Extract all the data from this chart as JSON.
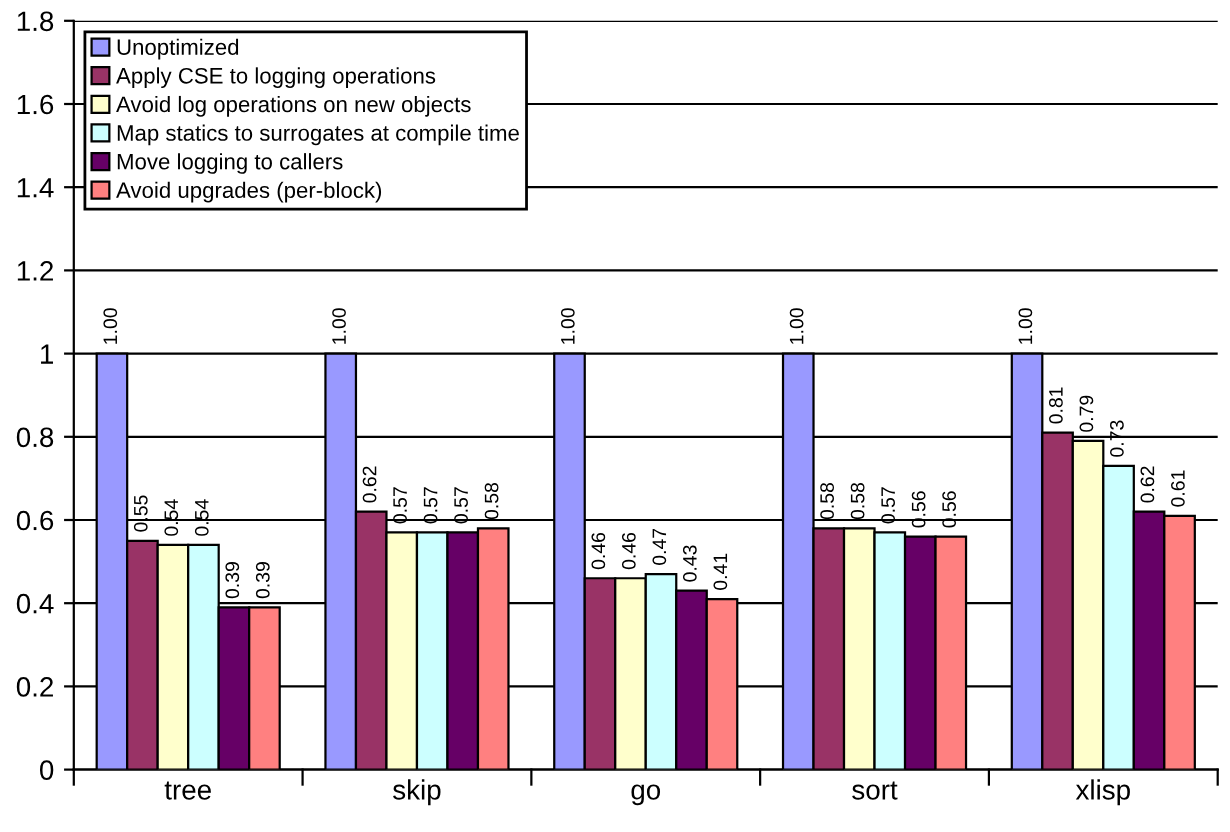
{
  "chart_data": {
    "type": "bar",
    "categories": [
      "tree",
      "skip",
      "go",
      "sort",
      "xlisp"
    ],
    "series": [
      {
        "name": "Unoptimized",
        "color": "#9999ff",
        "values": [
          1.0,
          1.0,
          1.0,
          1.0,
          1.0
        ],
        "value_labels": [
          "1.00",
          "1.00",
          "1.00",
          "1.00",
          "1.00"
        ]
      },
      {
        "name": "Apply CSE to logging operations",
        "color": "#993366",
        "values": [
          0.55,
          0.62,
          0.46,
          0.58,
          0.81
        ],
        "value_labels": [
          "0.55",
          "0.62",
          "0.46",
          "0.58",
          "0.81"
        ]
      },
      {
        "name": "Avoid log operations on new objects",
        "color": "#ffffcc",
        "values": [
          0.54,
          0.57,
          0.46,
          0.58,
          0.79
        ],
        "value_labels": [
          "0.54",
          "0.57",
          "0.46",
          "0.58",
          "0.79"
        ]
      },
      {
        "name": "Map statics to surrogates at compile time",
        "color": "#ccffff",
        "values": [
          0.54,
          0.57,
          0.47,
          0.57,
          0.73
        ],
        "value_labels": [
          "0.54",
          "0.57",
          "0.47",
          "0.57",
          "0.73"
        ]
      },
      {
        "name": "Move logging to callers",
        "color": "#660066",
        "values": [
          0.39,
          0.57,
          0.43,
          0.56,
          0.62
        ],
        "value_labels": [
          "0.39",
          "0.57",
          "0.43",
          "0.56",
          "0.62"
        ]
      },
      {
        "name": "Avoid upgrades (per-block)",
        "color": "#ff8080",
        "values": [
          0.39,
          0.58,
          0.41,
          0.56,
          0.61
        ],
        "value_labels": [
          "0.39",
          "0.58",
          "0.41",
          "0.56",
          "0.61"
        ]
      }
    ],
    "ylim": [
      0,
      1.8
    ],
    "yticks": [
      0,
      0.2,
      0.4,
      0.6,
      0.8,
      1,
      1.2,
      1.4,
      1.6,
      1.8
    ],
    "grid": "y",
    "legend": "top left"
  }
}
